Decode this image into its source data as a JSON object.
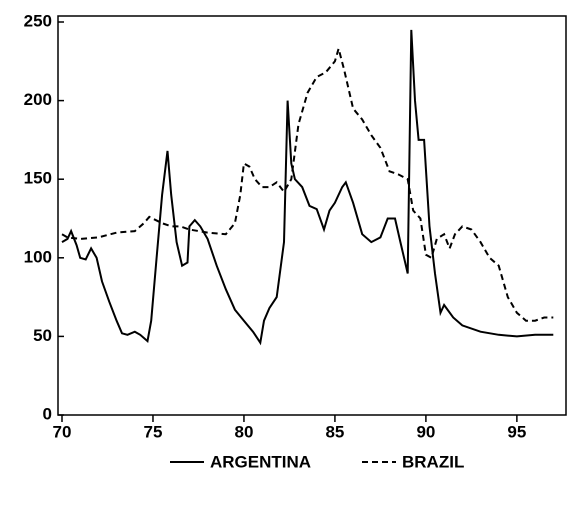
{
  "chart_data": {
    "type": "line",
    "series": [
      {
        "name": "ARGENTINA",
        "color": "#000000",
        "dash": "solid",
        "x": [
          70,
          70.3,
          70.5,
          70.8,
          71,
          71.3,
          71.6,
          71.9,
          72.2,
          72.6,
          73,
          73.3,
          73.6,
          74,
          74.3,
          74.7,
          74.9,
          75.2,
          75.5,
          75.8,
          76,
          76.3,
          76.6,
          76.9,
          77,
          77.3,
          77.6,
          78,
          78.5,
          79,
          79.5,
          80,
          80.5,
          80.9,
          81.1,
          81.4,
          81.8,
          82.2,
          82.4,
          82.6,
          82.8,
          83.2,
          83.6,
          84,
          84.4,
          84.7,
          85,
          85.4,
          85.6,
          86,
          86.5,
          87,
          87.5,
          87.9,
          88.3,
          88.6,
          88.9,
          89,
          89.2,
          89.4,
          89.6,
          89.9,
          90.2,
          90.5,
          90.8,
          91,
          91.5,
          92,
          93,
          94,
          95,
          96,
          97
        ],
        "values": [
          110,
          112,
          117,
          108,
          100,
          99,
          106,
          100,
          85,
          72,
          60,
          52,
          51,
          53,
          51,
          47,
          60,
          100,
          140,
          168,
          140,
          110,
          95,
          97,
          120,
          124,
          120,
          112,
          95,
          80,
          67,
          60,
          53,
          46,
          60,
          68,
          75,
          110,
          200,
          160,
          150,
          145,
          133,
          131,
          118,
          130,
          135,
          145,
          148,
          135,
          115,
          110,
          113,
          125,
          125,
          110,
          95,
          90,
          245,
          200,
          175,
          175,
          120,
          90,
          65,
          70,
          62,
          57,
          53,
          51,
          50,
          51,
          51
        ]
      },
      {
        "name": "BRAZIL",
        "color": "#000000",
        "dash": "dashed",
        "x": [
          70,
          70.3,
          71,
          72,
          73,
          74,
          74.5,
          74.8,
          75.5,
          76,
          76.5,
          77,
          78,
          79,
          79.5,
          79.8,
          80,
          80.3,
          80.6,
          81,
          81.4,
          81.8,
          82.2,
          82.6,
          83,
          83.5,
          84,
          84.5,
          85,
          85.2,
          85.5,
          86,
          86.5,
          87,
          87.5,
          88,
          88.5,
          89,
          89.3,
          89.7,
          90,
          90.3,
          90.6,
          91,
          91.3,
          91.6,
          92,
          92.5,
          93,
          93.5,
          94,
          94.5,
          95,
          95.5,
          96,
          96.5,
          97
        ],
        "values": [
          115,
          113,
          112,
          113,
          116,
          117,
          122,
          126,
          122,
          120,
          120,
          118,
          116,
          115,
          122,
          140,
          160,
          158,
          150,
          145,
          145,
          148,
          142,
          150,
          185,
          205,
          215,
          218,
          225,
          233,
          220,
          195,
          188,
          178,
          170,
          155,
          153,
          150,
          130,
          125,
          102,
          100,
          112,
          115,
          106,
          115,
          120,
          118,
          110,
          100,
          95,
          75,
          65,
          60,
          60,
          62,
          62
        ]
      }
    ],
    "xlim": [
      70,
      97.7
    ],
    "xticks": [
      70,
      75,
      80,
      85,
      90,
      95
    ],
    "ylim": [
      0,
      250
    ],
    "yticks": [
      0,
      50,
      100,
      150,
      200,
      250
    ]
  }
}
